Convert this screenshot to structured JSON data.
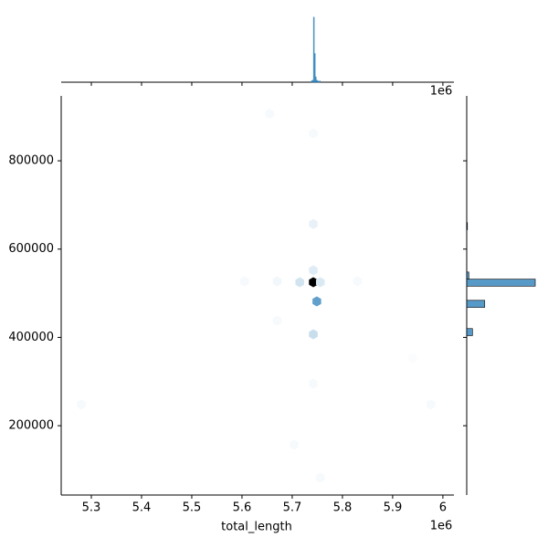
{
  "chart_data": {
    "type": "hexbin",
    "xlabel": "total_length",
    "x_offset_label": "1e6",
    "color": "#1f77b4",
    "xlim": [
      5.24,
      6.022
    ],
    "xticks": [
      5.3,
      5.4,
      5.5,
      5.6,
      5.7,
      5.8,
      5.9,
      6.0
    ],
    "ylim": [
      43000,
      947000
    ],
    "yticks": [
      200000,
      400000,
      600000,
      800000
    ],
    "x": [
      5.742,
      5.749,
      5.742,
      5.715,
      5.756,
      5.742,
      5.742,
      5.742,
      5.655,
      5.67,
      5.605,
      5.67,
      5.28,
      5.976,
      5.704,
      5.756,
      5.742,
      5.94,
      5.83
    ],
    "y": [
      525000,
      481500,
      407000,
      525000,
      525000,
      552000,
      657000,
      862000,
      907000,
      527000,
      527000,
      438000,
      248000,
      248000,
      157000,
      82000,
      295000,
      353000,
      527000
    ],
    "values": [
      100,
      35,
      12,
      10,
      8,
      7,
      5,
      2,
      2,
      3,
      2,
      2,
      2,
      2,
      2,
      2,
      2,
      1,
      2
    ],
    "top_hist": {
      "bins": [
        5.738,
        5.74,
        5.742,
        5.744,
        5.746,
        5.748,
        5.75,
        5.752,
        5.754,
        5.756
      ],
      "values": [
        2,
        3,
        95,
        42,
        8,
        3,
        2,
        1,
        2
      ],
      "ylim": [
        0,
        100
      ]
    },
    "right_hist": {
      "bins": [
        404000,
        420000,
        436000,
        452000,
        468000,
        484000,
        500000,
        516000,
        532000,
        548000,
        564000,
        580000,
        596000,
        612000,
        628000,
        644000,
        660000
      ],
      "values": [
        8,
        0,
        0,
        0,
        25,
        0,
        0,
        95,
        3,
        0,
        0,
        0,
        0,
        0,
        0,
        1
      ],
      "xlim": [
        0,
        100
      ]
    }
  }
}
